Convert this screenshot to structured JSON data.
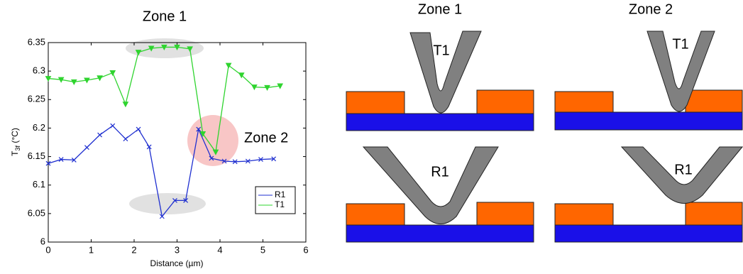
{
  "chart_data": {
    "type": "line",
    "title": "Zone 1",
    "annotation": "Zone 2",
    "xlabel": "Distance (µm)",
    "ylabel": [
      "T",
      "3f",
      " (°C)"
    ],
    "xlim": [
      0,
      6
    ],
    "xticks": [
      0,
      1,
      2,
      3,
      4,
      5,
      6
    ],
    "ylim": [
      6,
      6.35
    ],
    "yticks": [
      6,
      6.05,
      6.1,
      6.15,
      6.2,
      6.25,
      6.3,
      6.35
    ],
    "legend": "lower right",
    "series": [
      {
        "name": "R1",
        "color": "#1f2fd0",
        "marker": "x",
        "x": [
          0,
          0.3,
          0.6,
          0.9,
          1.2,
          1.5,
          1.8,
          2.1,
          2.35,
          2.65,
          2.95,
          3.2,
          3.5,
          3.8,
          4.1,
          4.35,
          4.65,
          4.95,
          5.25
        ],
        "values": [
          6.138,
          6.145,
          6.144,
          6.166,
          6.188,
          6.204,
          6.181,
          6.198,
          6.167,
          6.045,
          6.073,
          6.073,
          6.198,
          6.147,
          6.142,
          6.141,
          6.142,
          6.145,
          6.146
        ]
      },
      {
        "name": "T1",
        "color": "#2fd42f",
        "marker": "v",
        "x": [
          0,
          0.3,
          0.6,
          0.9,
          1.2,
          1.5,
          1.8,
          2.1,
          2.4,
          2.7,
          3.0,
          3.3,
          3.6,
          3.9,
          4.2,
          4.5,
          4.8,
          5.1,
          5.4
        ],
        "values": [
          6.287,
          6.285,
          6.281,
          6.284,
          6.288,
          6.297,
          6.242,
          6.333,
          6.34,
          6.342,
          6.342,
          6.339,
          6.19,
          6.158,
          6.31,
          6.293,
          6.272,
          6.271,
          6.274
        ]
      }
    ]
  },
  "diagram": {
    "zones": [
      {
        "title": "Zone 1",
        "top_label": "T1",
        "bottom_label": "R1"
      },
      {
        "title": "Zone 2",
        "top_label": "T1",
        "bottom_label": "R1"
      }
    ]
  }
}
